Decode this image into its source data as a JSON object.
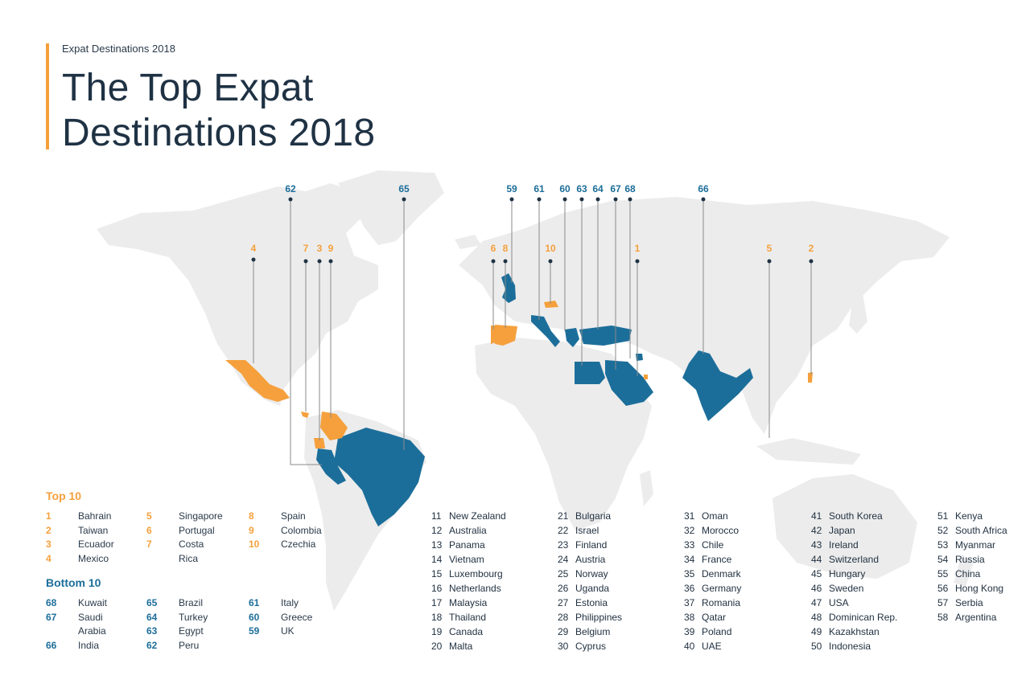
{
  "header": {
    "eyebrow": "Expat Destinations 2018",
    "title_line1": "The Top Expat",
    "title_line2": "Destinations 2018"
  },
  "colors": {
    "top": "#f5a03c",
    "bottom": "#1c6e9a",
    "land": "#ececec",
    "title": "#1f3244"
  },
  "map": {
    "highlighted": [
      {
        "rank": "1",
        "group": "top"
      },
      {
        "rank": "2",
        "group": "top"
      },
      {
        "rank": "3",
        "group": "top"
      },
      {
        "rank": "4",
        "group": "top"
      },
      {
        "rank": "5",
        "group": "top"
      },
      {
        "rank": "6",
        "group": "top"
      },
      {
        "rank": "7",
        "group": "top"
      },
      {
        "rank": "8",
        "group": "top"
      },
      {
        "rank": "9",
        "group": "top"
      },
      {
        "rank": "10",
        "group": "top"
      },
      {
        "rank": "59",
        "group": "bottom"
      },
      {
        "rank": "60",
        "group": "bottom"
      },
      {
        "rank": "61",
        "group": "bottom"
      },
      {
        "rank": "62",
        "group": "bottom"
      },
      {
        "rank": "63",
        "group": "bottom"
      },
      {
        "rank": "64",
        "group": "bottom"
      },
      {
        "rank": "65",
        "group": "bottom"
      },
      {
        "rank": "66",
        "group": "bottom"
      },
      {
        "rank": "67",
        "group": "bottom"
      },
      {
        "rank": "68",
        "group": "bottom"
      }
    ]
  },
  "legend": {
    "top_title": "Top 10",
    "bottom_title": "Bottom 10",
    "top": [
      {
        "rank": "1",
        "name": "Bahrain"
      },
      {
        "rank": "2",
        "name": "Taiwan"
      },
      {
        "rank": "3",
        "name": "Ecuador"
      },
      {
        "rank": "4",
        "name": "Mexico"
      },
      {
        "rank": "5",
        "name": "Singapore"
      },
      {
        "rank": "6",
        "name": "Portugal"
      },
      {
        "rank": "7",
        "name": "Costa",
        "cont": "Rica"
      },
      {
        "rank": "8",
        "name": "Spain"
      },
      {
        "rank": "9",
        "name": "Colombia"
      },
      {
        "rank": "10",
        "name": "Czechia"
      }
    ],
    "bottom": [
      {
        "rank": "68",
        "name": "Kuwait"
      },
      {
        "rank": "67",
        "name": "Saudi",
        "cont": "Arabia"
      },
      {
        "rank": "66",
        "name": "India"
      },
      {
        "rank": "65",
        "name": "Brazil"
      },
      {
        "rank": "64",
        "name": "Turkey"
      },
      {
        "rank": "63",
        "name": "Egypt"
      },
      {
        "rank": "62",
        "name": "Peru"
      },
      {
        "rank": "61",
        "name": "Italy"
      },
      {
        "rank": "60",
        "name": "Greece"
      },
      {
        "rank": "59",
        "name": "UK"
      }
    ]
  },
  "rankings": [
    [
      {
        "rank": "11",
        "name": "New Zealand"
      },
      {
        "rank": "12",
        "name": "Australia"
      },
      {
        "rank": "13",
        "name": "Panama"
      },
      {
        "rank": "14",
        "name": "Vietnam"
      },
      {
        "rank": "15",
        "name": "Luxembourg"
      },
      {
        "rank": "16",
        "name": "Netherlands"
      },
      {
        "rank": "17",
        "name": "Malaysia"
      },
      {
        "rank": "18",
        "name": "Thailand"
      },
      {
        "rank": "19",
        "name": "Canada"
      },
      {
        "rank": "20",
        "name": "Malta"
      }
    ],
    [
      {
        "rank": "21",
        "name": "Bulgaria"
      },
      {
        "rank": "22",
        "name": "Israel"
      },
      {
        "rank": "23",
        "name": "Finland"
      },
      {
        "rank": "24",
        "name": "Austria"
      },
      {
        "rank": "25",
        "name": "Norway"
      },
      {
        "rank": "26",
        "name": "Uganda"
      },
      {
        "rank": "27",
        "name": "Estonia"
      },
      {
        "rank": "28",
        "name": "Philippines"
      },
      {
        "rank": "29",
        "name": "Belgium"
      },
      {
        "rank": "30",
        "name": "Cyprus"
      }
    ],
    [
      {
        "rank": "31",
        "name": "Oman"
      },
      {
        "rank": "32",
        "name": "Morocco"
      },
      {
        "rank": "33",
        "name": "Chile"
      },
      {
        "rank": "34",
        "name": "France"
      },
      {
        "rank": "35",
        "name": "Denmark"
      },
      {
        "rank": "36",
        "name": "Germany"
      },
      {
        "rank": "37",
        "name": "Romania"
      },
      {
        "rank": "38",
        "name": "Qatar"
      },
      {
        "rank": "39",
        "name": "Poland"
      },
      {
        "rank": "40",
        "name": "UAE"
      }
    ],
    [
      {
        "rank": "41",
        "name": "South Korea"
      },
      {
        "rank": "42",
        "name": "Japan"
      },
      {
        "rank": "43",
        "name": "Ireland"
      },
      {
        "rank": "44",
        "name": "Switzerland"
      },
      {
        "rank": "45",
        "name": "Hungary"
      },
      {
        "rank": "46",
        "name": "Sweden"
      },
      {
        "rank": "47",
        "name": "USA"
      },
      {
        "rank": "48",
        "name": "Dominican Rep."
      },
      {
        "rank": "49",
        "name": "Kazakhstan"
      },
      {
        "rank": "50",
        "name": "Indonesia"
      }
    ],
    [
      {
        "rank": "51",
        "name": "Kenya"
      },
      {
        "rank": "52",
        "name": "South Africa"
      },
      {
        "rank": "53",
        "name": "Myanmar"
      },
      {
        "rank": "54",
        "name": "Russia"
      },
      {
        "rank": "55",
        "name": "China"
      },
      {
        "rank": "56",
        "name": "Hong Kong"
      },
      {
        "rank": "57",
        "name": "Serbia"
      },
      {
        "rank": "58",
        "name": "Argentina"
      }
    ]
  ]
}
